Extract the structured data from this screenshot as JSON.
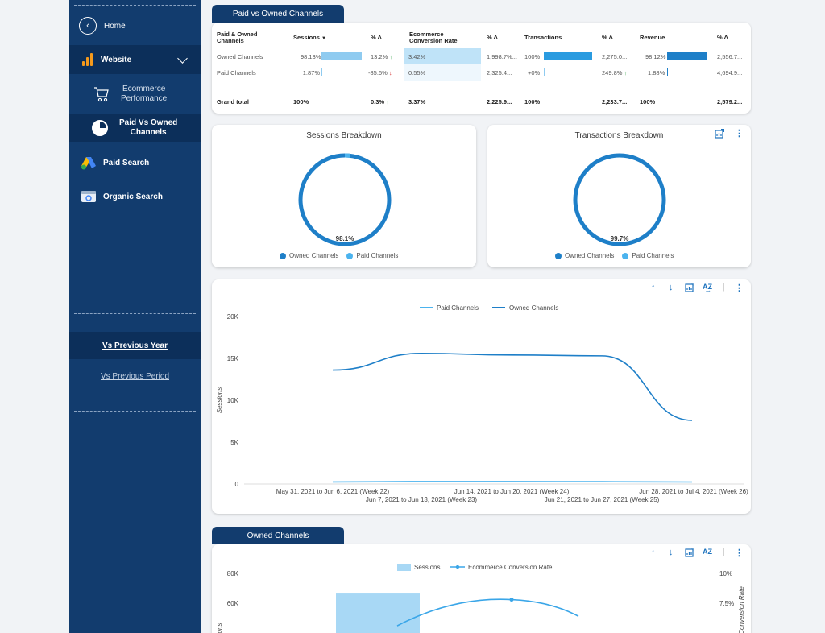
{
  "sidebar": {
    "home": "Home",
    "website": "Website",
    "ecommerce": [
      "Ecommerce",
      "Performance"
    ],
    "paid_vs_owned": [
      "Paid Vs Owned",
      "Channels"
    ],
    "paid_search": "Paid Search",
    "organic_search": "Organic Search",
    "vs_previous_year": "Vs Previous Year",
    "vs_previous_period": "Vs Previous Period"
  },
  "table": {
    "tab_title": "Paid vs Owned Channels",
    "headers": {
      "channel": [
        "Paid & Owned",
        "Channels"
      ],
      "sessions": "Sessions",
      "sort_arrow": "▼",
      "delta1": "% Δ",
      "conv": [
        "Ecommerce",
        "Conversion Rate"
      ],
      "delta2": "% Δ",
      "transactions": "Transactions",
      "delta3": "% Δ",
      "revenue": "Revenue",
      "delta4": "% Δ"
    },
    "rows": [
      {
        "name": "Owned Channels",
        "sessions": "98.13%",
        "sessions_frac": 0.98,
        "d1": "13.2%",
        "d1_dir": "up",
        "conv": "3.42%",
        "d2": "1,998.7%...",
        "trans": "100%",
        "trans_frac": 1.0,
        "d3": "2,275.0...",
        "rev": "98.12%",
        "rev_frac": 0.98,
        "d4": "2,556.7..."
      },
      {
        "name": "Paid Channels",
        "sessions": "1.87%",
        "sessions_frac": 0.02,
        "d1": "-85.6%",
        "d1_dir": "down",
        "conv": "0.55%",
        "d2": "2,325.4...",
        "trans": "+0%",
        "trans_frac": 0.0,
        "d3": "249.8%",
        "d3_dir": "up",
        "rev": "1.88%",
        "rev_frac": 0.02,
        "d4": "4,694.9..."
      }
    ],
    "total": {
      "name": "Grand total",
      "sessions": "100%",
      "d1": "0.3%",
      "d1_dir": "up",
      "conv": "3.37%",
      "d2": "2,225.9...",
      "trans": "100%",
      "d3": "2,233.7...",
      "rev": "100%",
      "d4": "2,579.2..."
    }
  },
  "sessions_breakdown": {
    "title": "Sessions Breakdown",
    "label": "98.1%",
    "owned_frac": 0.981,
    "legend": [
      "Owned Channels",
      "Paid Channels"
    ]
  },
  "transactions_breakdown": {
    "title": "Transactions Breakdown",
    "label": "99.7%",
    "owned_frac": 0.997,
    "legend": [
      "Owned Channels",
      "Paid Channels"
    ]
  },
  "colors": {
    "owned": "#1e7fc8",
    "paid": "#4bb3ee",
    "navy": "#123c6e"
  },
  "chart_data": [
    {
      "type": "line",
      "title": "",
      "ylabel": "Sessions",
      "ylim": [
        0,
        20000
      ],
      "yticks": [
        "0",
        "5K",
        "10K",
        "15K",
        "20K"
      ],
      "x_labels": [
        "May 31, 2021 to Jun 6, 2021 (Week 22)",
        "Jun 7, 2021 to Jun 13, 2021 (Week 23)",
        "Jun 14, 2021 to Jun 20, 2021 (Week 24)",
        "Jun 21, 2021 to Jun 27, 2021 (Week 25)",
        "Jun 28, 2021 to Jul 4, 2021 (Week 26)"
      ],
      "legend": "top-center",
      "series": [
        {
          "name": "Paid Channels",
          "values": [
            250,
            300,
            290,
            280,
            240
          ]
        },
        {
          "name": "Owned Channels",
          "values": [
            13600,
            15600,
            15400,
            15300,
            7600
          ]
        }
      ]
    },
    {
      "type": "bar-line",
      "tab_title": "Owned Channels",
      "left_ticks": [
        "80K",
        "60K"
      ],
      "right_ticks": [
        "10%",
        "7.5%"
      ],
      "left_axis_label": "ons",
      "right_axis_label": "Conversion Rate",
      "series": [
        {
          "name": "Sessions",
          "type": "bar",
          "values": [
            67000
          ]
        },
        {
          "name": "Ecommerce Conversion Rate",
          "type": "line",
          "values": [
            5.6,
            7.8,
            6.4
          ]
        }
      ]
    }
  ]
}
